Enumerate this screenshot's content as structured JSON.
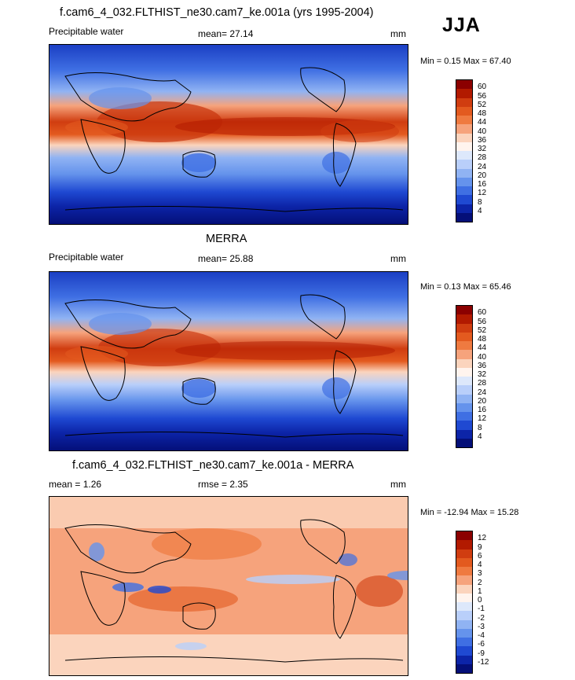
{
  "season": "JJA",
  "panels": [
    {
      "title": "f.cam6_4_032.FLTHIST_ne30.cam7_ke.001a (yrs 1995-2004)",
      "left_label": "Precipitable water",
      "center_label": "mean=  27.14",
      "units": "mm",
      "minmax": "Min =   0.15 Max =  67.40",
      "colorbar_labels": [
        "60",
        "56",
        "52",
        "48",
        "44",
        "40",
        "36",
        "32",
        "28",
        "24",
        "20",
        "16",
        "12",
        "8",
        "4"
      ],
      "colorbar_colors": [
        "#8b0000",
        "#b21a00",
        "#d03d10",
        "#e35a1f",
        "#ef7a40",
        "#f6a37c",
        "#fbd4bd",
        "#fff4ee",
        "#dde8fb",
        "#b9cffa",
        "#90b3f3",
        "#6593ec",
        "#3f6fe3",
        "#1f49d2",
        "#0c24a8",
        "#040f78"
      ]
    },
    {
      "title": "MERRA",
      "left_label": "Precipitable water",
      "center_label": "mean=  25.88",
      "units": "mm",
      "minmax": "Min =   0.13 Max =  65.46",
      "colorbar_labels": [
        "60",
        "56",
        "52",
        "48",
        "44",
        "40",
        "36",
        "32",
        "28",
        "24",
        "20",
        "16",
        "12",
        "8",
        "4"
      ],
      "colorbar_colors": [
        "#8b0000",
        "#b21a00",
        "#d03d10",
        "#e35a1f",
        "#ef7a40",
        "#f6a37c",
        "#fbd4bd",
        "#fff4ee",
        "#dde8fb",
        "#b9cffa",
        "#90b3f3",
        "#6593ec",
        "#3f6fe3",
        "#1f49d2",
        "#0c24a8",
        "#040f78"
      ]
    },
    {
      "title": "f.cam6_4_032.FLTHIST_ne30.cam7_ke.001a - MERRA",
      "left_label": "mean =   1.26",
      "center_label": "rmse =   2.35",
      "units": "mm",
      "minmax": "Min = -12.94 Max =  15.28",
      "colorbar_labels": [
        "12",
        "9",
        "6",
        "4",
        "3",
        "2",
        "1",
        "0",
        "-1",
        "-2",
        "-3",
        "-4",
        "-6",
        "-9",
        "-12"
      ],
      "colorbar_colors": [
        "#8b0000",
        "#b21a00",
        "#d03d10",
        "#e35a1f",
        "#ef7a40",
        "#f6a37c",
        "#fbd4bd",
        "#fff4ee",
        "#dde8fb",
        "#b9cffa",
        "#90b3f3",
        "#6593ec",
        "#3f6fe3",
        "#1f49d2",
        "#0c24a8",
        "#040f78"
      ]
    }
  ]
}
